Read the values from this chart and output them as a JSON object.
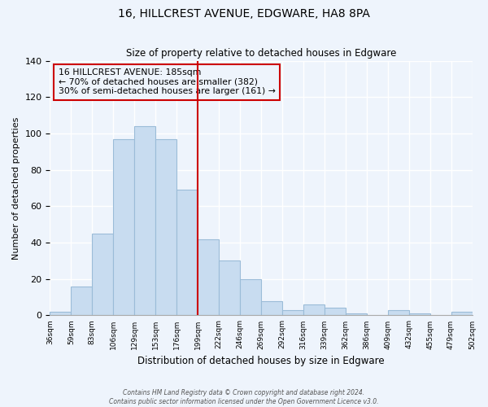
{
  "title": "16, HILLCREST AVENUE, EDGWARE, HA8 8PA",
  "subtitle": "Size of property relative to detached houses in Edgware",
  "xlabel": "Distribution of detached houses by size in Edgware",
  "ylabel": "Number of detached properties",
  "bin_labels": [
    "36sqm",
    "59sqm",
    "83sqm",
    "106sqm",
    "129sqm",
    "153sqm",
    "176sqm",
    "199sqm",
    "222sqm",
    "246sqm",
    "269sqm",
    "292sqm",
    "316sqm",
    "339sqm",
    "362sqm",
    "386sqm",
    "409sqm",
    "432sqm",
    "455sqm",
    "479sqm",
    "502sqm"
  ],
  "bar_values": [
    2,
    16,
    45,
    97,
    104,
    97,
    69,
    42,
    30,
    20,
    8,
    3,
    6,
    4,
    1,
    0,
    3,
    1,
    0,
    2
  ],
  "bar_color": "#c8dcf0",
  "bar_edge_color": "#9bbcd8",
  "vline_color": "#cc0000",
  "annotation_line1": "16 HILLCREST AVENUE: 185sqm",
  "annotation_line2": "← 70% of detached houses are smaller (382)",
  "annotation_line3": "30% of semi-detached houses are larger (161) →",
  "annotation_box_edge": "#cc0000",
  "ylim": [
    0,
    140
  ],
  "yticks": [
    0,
    20,
    40,
    60,
    80,
    100,
    120,
    140
  ],
  "footer_line1": "Contains HM Land Registry data © Crown copyright and database right 2024.",
  "footer_line2": "Contains public sector information licensed under the Open Government Licence v3.0.",
  "bg_color": "#eef4fc"
}
